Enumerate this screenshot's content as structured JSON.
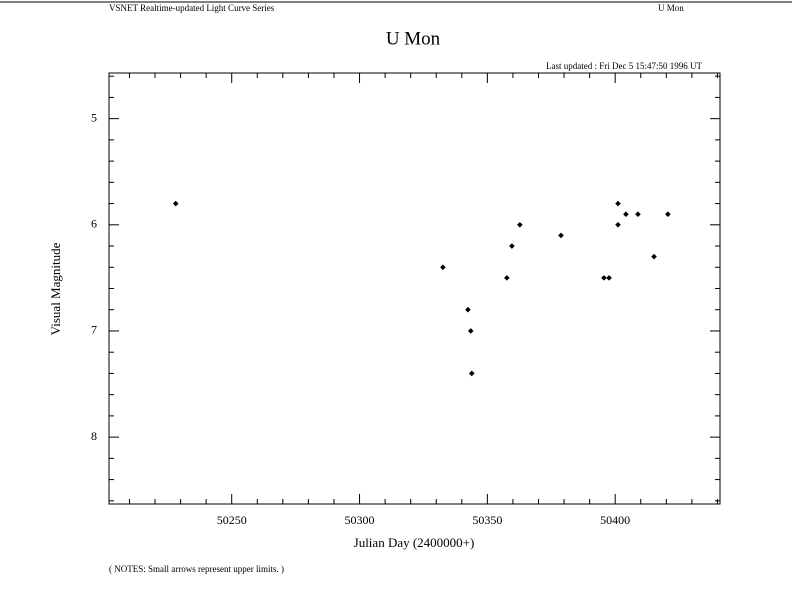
{
  "header": {
    "left": "VSNET Realtime-updated Light Curve Series",
    "right": "U Mon"
  },
  "chart_data": {
    "type": "scatter",
    "title": "U Mon",
    "subtitle": "Last updated :  Fri Dec 5 15:47:50 1996 UT",
    "x_label": "Julian Day (2400000+)",
    "y_label": "Visual Magnitude",
    "note": "( NOTES: Small arrows represent upper limits. )",
    "color": "#000000",
    "x": [
      50228.1,
      50332.6,
      50342.4,
      50343.5,
      50343.9,
      50357.6,
      50359.6,
      50362.7,
      50378.8,
      50395.6,
      50397.6,
      50401.1,
      50401.1,
      50404.2,
      50408.9,
      50415.2,
      50420.6
    ],
    "values": [
      5.8,
      6.4,
      6.8,
      7.0,
      7.4,
      6.5,
      6.2,
      6.0,
      6.1,
      6.5,
      6.5,
      5.8,
      6.0,
      5.9,
      5.9,
      6.3,
      5.9
    ],
    "xlim": [
      50202,
      50441
    ],
    "ylim": [
      8.63,
      4.57
    ],
    "xticks": [
      50250,
      50300,
      50350,
      50400
    ],
    "yticks": [
      5,
      6,
      7,
      8
    ],
    "xminor": [
      50210,
      50220,
      50230,
      50240,
      50260,
      50270,
      50280,
      50290,
      50310,
      50320,
      50330,
      50340,
      50360,
      50370,
      50380,
      50390,
      50410,
      50420,
      50430,
      50440
    ],
    "yminor": [
      4.6,
      4.8,
      5.2,
      5.4,
      5.6,
      5.8,
      6.2,
      6.4,
      6.6,
      6.8,
      7.2,
      7.4,
      7.6,
      7.8,
      8.2,
      8.4,
      8.6
    ]
  }
}
